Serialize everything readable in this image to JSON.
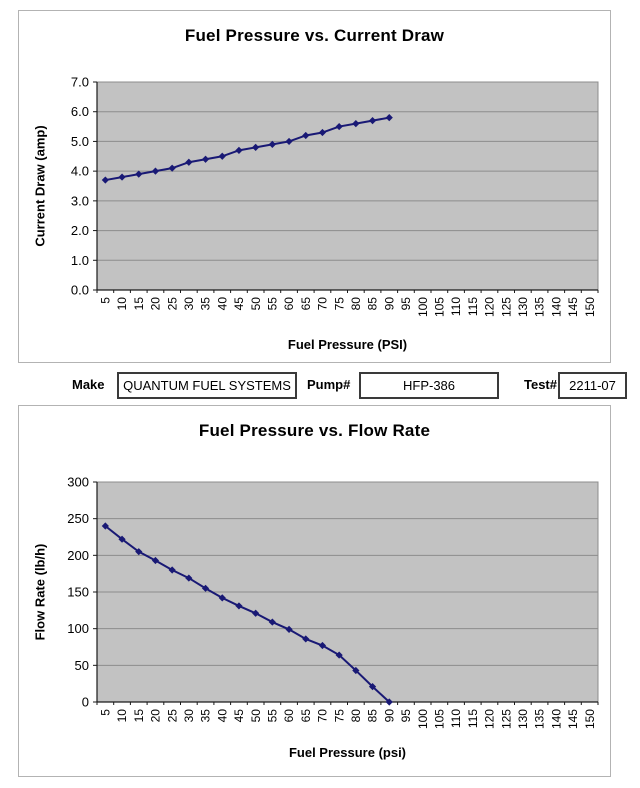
{
  "meta_row": {
    "make_label": "Make",
    "make_value": "QUANTUM FUEL SYSTEMS",
    "pump_label": "Pump#",
    "pump_value": "HFP-386",
    "test_label": "Test#",
    "test_value": "2211-07"
  },
  "colors": {
    "series_line": "#191975",
    "marker": "#191975",
    "plot_bg": "#c2c2c2",
    "gridline": "#8c8c8c",
    "axis": "#1a1a1a",
    "chart_border": "#b3b3b3",
    "text": "#000000"
  },
  "chart_data": [
    {
      "type": "line",
      "title": "Fuel Pressure vs. Current Draw",
      "xlabel": "Fuel Pressure (PSI)",
      "ylabel": "Current Draw (amp)",
      "categories": [
        5,
        10,
        15,
        20,
        25,
        30,
        35,
        40,
        45,
        50,
        55,
        60,
        65,
        70,
        75,
        80,
        85,
        90,
        95,
        100,
        105,
        110,
        115,
        120,
        125,
        130,
        135,
        140,
        145,
        150
      ],
      "x": [
        5,
        10,
        15,
        20,
        25,
        30,
        35,
        40,
        45,
        50,
        55,
        60,
        65,
        70,
        75,
        80,
        85,
        90
      ],
      "values": [
        3.7,
        3.8,
        3.9,
        4.0,
        4.1,
        4.3,
        4.4,
        4.5,
        4.7,
        4.8,
        4.9,
        5.0,
        5.2,
        5.3,
        5.5,
        5.6,
        5.7,
        5.8
      ],
      "ylim": [
        0,
        7
      ],
      "ytick_step": 1,
      "ytick_decimals": 1,
      "grid": true,
      "legend": "none",
      "marker": "diamond"
    },
    {
      "type": "line",
      "title": "Fuel Pressure vs. Flow Rate",
      "xlabel": "Fuel Pressure (psi)",
      "ylabel": "Flow Rate (lb/h)",
      "categories": [
        5,
        10,
        15,
        20,
        25,
        30,
        35,
        40,
        45,
        50,
        55,
        60,
        65,
        70,
        75,
        80,
        85,
        90,
        95,
        100,
        105,
        110,
        115,
        120,
        125,
        130,
        135,
        140,
        145,
        150
      ],
      "x": [
        5,
        10,
        15,
        20,
        25,
        30,
        35,
        40,
        45,
        50,
        55,
        60,
        65,
        70,
        75,
        80,
        85,
        90
      ],
      "values": [
        240,
        222,
        205,
        193,
        180,
        169,
        155,
        142,
        131,
        121,
        109,
        99,
        86,
        77,
        64,
        43,
        21,
        0
      ],
      "ylim": [
        0,
        300
      ],
      "ytick_step": 50,
      "ytick_decimals": 0,
      "grid": true,
      "legend": "none",
      "marker": "diamond"
    }
  ]
}
